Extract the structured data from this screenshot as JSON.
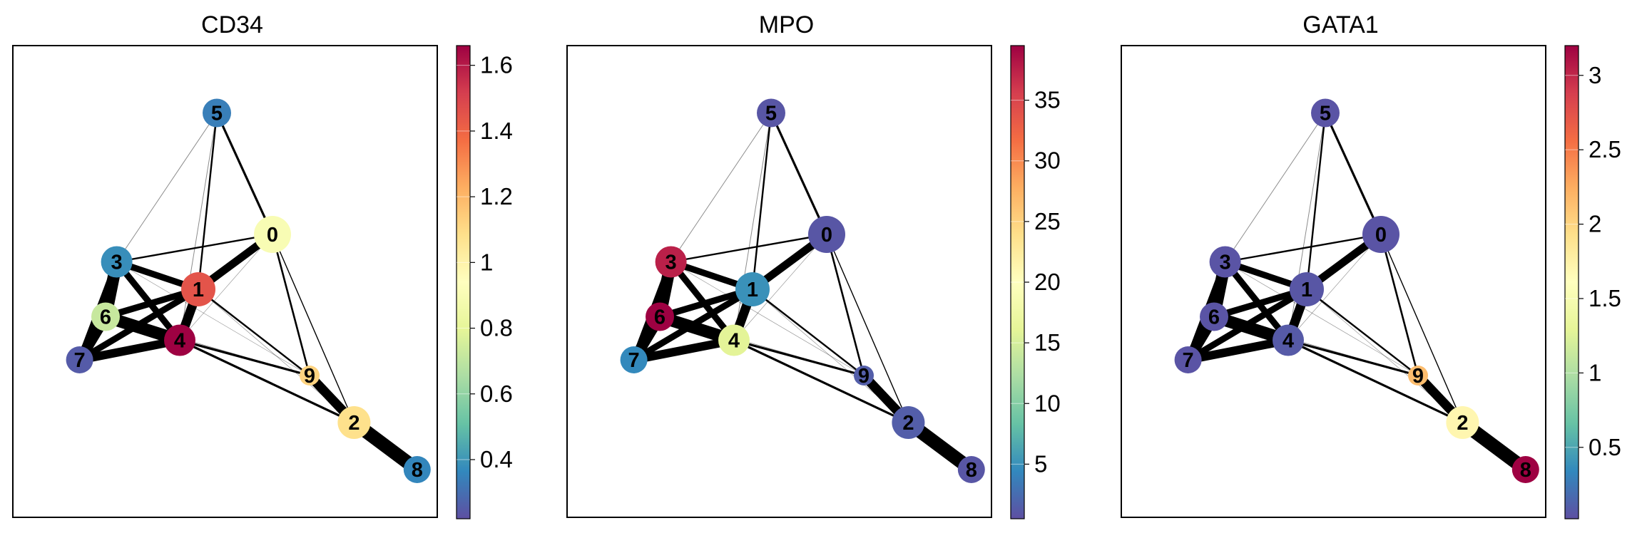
{
  "chart_data": {
    "type": "graph",
    "layout_name": "PAGA",
    "colormap": "Spectral_r",
    "nodes": [
      {
        "id": "0",
        "x": 0.6,
        "y": 0.62
      },
      {
        "id": "1",
        "x": 0.4,
        "y": 0.48
      },
      {
        "id": "2",
        "x": 0.82,
        "y": 0.14
      },
      {
        "id": "3",
        "x": 0.18,
        "y": 0.55
      },
      {
        "id": "4",
        "x": 0.35,
        "y": 0.35
      },
      {
        "id": "5",
        "x": 0.45,
        "y": 0.93
      },
      {
        "id": "6",
        "x": 0.15,
        "y": 0.41
      },
      {
        "id": "7",
        "x": 0.08,
        "y": 0.3
      },
      {
        "id": "8",
        "x": 0.99,
        "y": 0.02
      },
      {
        "id": "9",
        "x": 0.7,
        "y": 0.26
      }
    ],
    "edges": [
      {
        "a": "2",
        "b": "8",
        "weight": 0.95
      },
      {
        "a": "3",
        "b": "6",
        "weight": 0.85
      },
      {
        "a": "6",
        "b": "4",
        "weight": 0.85
      },
      {
        "a": "6",
        "b": "7",
        "weight": 0.75
      },
      {
        "a": "4",
        "b": "7",
        "weight": 0.6
      },
      {
        "a": "1",
        "b": "4",
        "weight": 0.65
      },
      {
        "a": "9",
        "b": "2",
        "weight": 0.65
      },
      {
        "a": "0",
        "b": "1",
        "weight": 0.55
      },
      {
        "a": "1",
        "b": "3",
        "weight": 0.45
      },
      {
        "a": "3",
        "b": "4",
        "weight": 0.45
      },
      {
        "a": "1",
        "b": "6",
        "weight": 0.45
      },
      {
        "a": "1",
        "b": "7",
        "weight": 0.45
      },
      {
        "a": "3",
        "b": "7",
        "weight": 0.4
      },
      {
        "a": "3",
        "b": "0",
        "weight": 0.12
      },
      {
        "a": "4",
        "b": "9",
        "weight": 0.16
      },
      {
        "a": "4",
        "b": "2",
        "weight": 0.16
      },
      {
        "a": "0",
        "b": "9",
        "weight": 0.13
      },
      {
        "a": "0",
        "b": "5",
        "weight": 0.16
      },
      {
        "a": "1",
        "b": "5",
        "weight": 0.12
      },
      {
        "a": "1",
        "b": "9",
        "weight": 0.12
      },
      {
        "a": "0",
        "b": "2",
        "weight": 0.07
      },
      {
        "a": "3",
        "b": "5",
        "weight": 0.05
      },
      {
        "a": "4",
        "b": "5",
        "weight": 0.05
      },
      {
        "a": "6",
        "b": "9",
        "weight": 0.04
      },
      {
        "a": "3",
        "b": "9",
        "weight": 0.03
      },
      {
        "a": "0",
        "b": "4",
        "weight": 0.03
      },
      {
        "a": "1",
        "b": "2",
        "weight": 0.03
      }
    ],
    "panels": [
      {
        "title": "CD34",
        "vmin": 0.22,
        "vmax": 1.66,
        "ticks": [
          0.4,
          0.6,
          0.8,
          1,
          1.2,
          1.4,
          1.6
        ],
        "tick_labels": [
          "0.4",
          "0.6",
          "0.8",
          "1",
          "1.2",
          "1.4",
          "1.6"
        ],
        "values": {
          "0": 0.9,
          "1": 1.45,
          "2": 1.08,
          "3": 0.38,
          "4": 1.66,
          "5": 0.34,
          "6": 0.72,
          "7": 0.25,
          "8": 0.36,
          "9": 1.12
        }
      },
      {
        "title": "MPO",
        "vmin": 0.5,
        "vmax": 39.5,
        "ticks": [
          5,
          10,
          15,
          20,
          25,
          30,
          35
        ],
        "tick_labels": [
          "5",
          "10",
          "15",
          "20",
          "25",
          "30",
          "35"
        ],
        "values": {
          "0": 1.0,
          "1": 5.0,
          "2": 1.5,
          "3": 37.5,
          "4": 16.0,
          "5": 1.0,
          "6": 39.5,
          "7": 4.5,
          "8": 1.0,
          "9": 1.5
        }
      },
      {
        "title": "GATA1",
        "vmin": 0.02,
        "vmax": 3.2,
        "ticks": [
          0.5,
          1,
          1.5,
          2,
          2.5,
          3
        ],
        "tick_labels": [
          "0.5",
          "1",
          "1.5",
          "2",
          "2.5",
          "3"
        ],
        "values": {
          "0": 0.05,
          "1": 0.06,
          "2": 1.7,
          "3": 0.05,
          "4": 0.08,
          "5": 0.05,
          "6": 0.05,
          "7": 0.05,
          "8": 3.2,
          "9": 2.15
        }
      }
    ]
  }
}
